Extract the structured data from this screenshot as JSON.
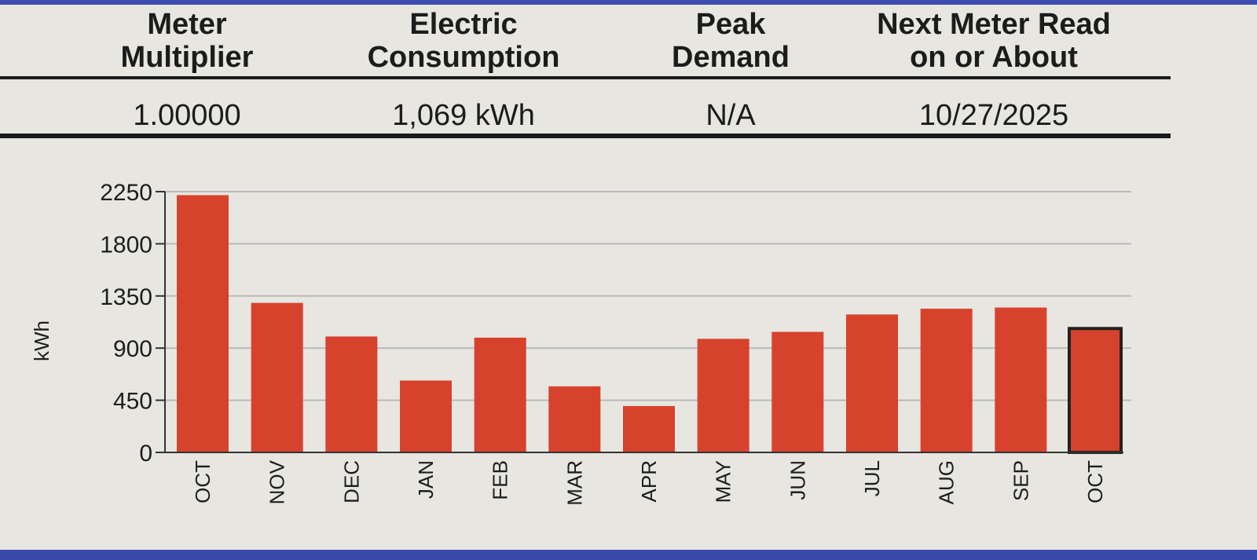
{
  "meter_info": {
    "headers": [
      {
        "line1": "Meter",
        "line2": "Multiplier"
      },
      {
        "line1": "Electric",
        "line2": "Consumption"
      },
      {
        "line1": "Peak",
        "line2": "Demand"
      },
      {
        "line1": "Next Meter Read",
        "line2": "on or About"
      }
    ],
    "values": [
      "1.00000",
      "1,069 kWh",
      "N/A",
      "10/27/2025"
    ]
  },
  "chart_data": {
    "type": "bar",
    "categories": [
      "OCT",
      "NOV",
      "DEC",
      "JAN",
      "FEB",
      "MAR",
      "APR",
      "MAY",
      "JUN",
      "JUL",
      "AUG",
      "SEP",
      "OCT"
    ],
    "values": [
      2220,
      1290,
      1000,
      620,
      990,
      570,
      400,
      980,
      1040,
      1190,
      1240,
      1250,
      1069
    ],
    "ylabel": "kWh",
    "xlabel": "",
    "ylim": [
      0,
      2250
    ],
    "yticks": [
      0,
      450,
      900,
      1350,
      1800,
      2250
    ],
    "grid": true,
    "highlight_index": 12,
    "colors": {
      "bar": "#d7422d",
      "highlight_outline": "#222222",
      "grid": "#b9b9b9",
      "axis": "#333333"
    }
  }
}
